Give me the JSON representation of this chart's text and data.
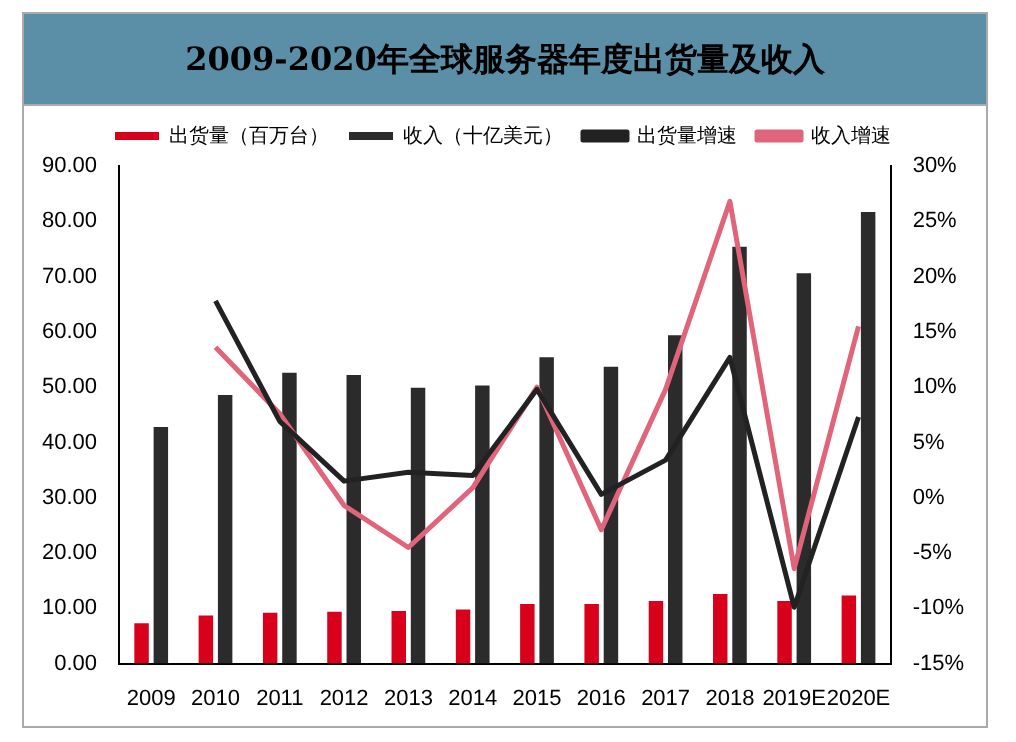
{
  "chart_data": {
    "type": "bar",
    "title": "2009-2020年全球服务器年度出货量及收入",
    "categories": [
      "2009",
      "2010",
      "2011",
      "2012",
      "2013",
      "2014",
      "2015",
      "2016",
      "2017",
      "2018",
      "2019E",
      "2020E"
    ],
    "series": [
      {
        "name": "出货量（百万台）",
        "color": "#d9001b",
        "values": [
          7.3,
          8.7,
          9.2,
          9.4,
          9.5,
          9.8,
          10.8,
          10.8,
          11.3,
          12.6,
          11.3,
          12.3
        ]
      },
      {
        "name": "收入（十亿美元）",
        "color": "#2b2b2b",
        "values": [
          42.8,
          48.6,
          52.6,
          52.2,
          49.9,
          50.3,
          55.4,
          53.7,
          59.4,
          75.4,
          70.6,
          81.7
        ]
      },
      {
        "name": "出货量增速",
        "type": "line",
        "axis": "y2",
        "color": "#222222",
        "values": [
          null,
          17.8,
          6.9,
          1.5,
          2.3,
          2.0,
          9.8,
          0.3,
          3.4,
          12.7,
          -9.9,
          7.3
        ]
      },
      {
        "name": "收入增速",
        "type": "line",
        "axis": "y2",
        "color": "#e0647a",
        "values": [
          null,
          13.6,
          7.6,
          -0.7,
          -4.5,
          0.9,
          10.0,
          -2.9,
          9.8,
          26.8,
          -6.4,
          15.5
        ]
      }
    ],
    "ylim": [
      0,
      90
    ],
    "yticks": [
      {
        "value": 0,
        "label": "0.00"
      },
      {
        "value": 10,
        "label": "10.00"
      },
      {
        "value": 20,
        "label": "20.00"
      },
      {
        "value": 30,
        "label": "30.00"
      },
      {
        "value": 40,
        "label": "40.00"
      },
      {
        "value": 50,
        "label": "50.00"
      },
      {
        "value": 60,
        "label": "60.00"
      },
      {
        "value": 70,
        "label": "70.00"
      },
      {
        "value": 80,
        "label": "80.00"
      },
      {
        "value": 90,
        "label": "90.00"
      }
    ],
    "y2lim": [
      -15,
      30
    ],
    "y2ticks": [
      {
        "value": -15,
        "label": "-15%"
      },
      {
        "value": -10,
        "label": "-10%"
      },
      {
        "value": -5,
        "label": "-5%"
      },
      {
        "value": 0,
        "label": "0%"
      },
      {
        "value": 5,
        "label": "5%"
      },
      {
        "value": 10,
        "label": "10%"
      },
      {
        "value": 15,
        "label": "15%"
      },
      {
        "value": 20,
        "label": "20%"
      },
      {
        "value": 25,
        "label": "25%"
      },
      {
        "value": 30,
        "label": "30%"
      }
    ],
    "grid": false,
    "legend": "top"
  }
}
